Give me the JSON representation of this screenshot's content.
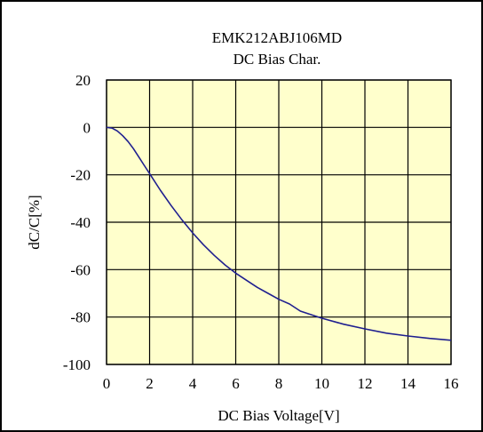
{
  "chart_data": {
    "type": "line",
    "title": "EMK212ABJ106MD",
    "subtitle": "DC Bias Char.",
    "xlabel": "DC Bias Voltage[V]",
    "ylabel": "dC/C[%]",
    "xlim": [
      0,
      16
    ],
    "ylim": [
      -100,
      20
    ],
    "x_ticks": [
      "0",
      "2",
      "4",
      "6",
      "8",
      "10",
      "12",
      "14",
      "16"
    ],
    "y_ticks": [
      "20",
      "0",
      "-20",
      "-40",
      "-60",
      "-80",
      "-100"
    ],
    "grid": true,
    "plot_background": "#ffffcc",
    "line_color": "#1f1f8f",
    "series": [
      {
        "x": [
          0,
          0.25,
          0.5,
          0.75,
          1.0,
          1.25,
          1.5,
          1.75,
          2.0,
          2.5,
          3.0,
          3.5,
          4.0,
          4.5,
          5.0,
          5.5,
          6.0,
          6.5,
          7.0,
          7.5,
          8.0,
          8.5,
          9.0,
          9.5,
          10.0,
          11.0,
          12.0,
          13.0,
          14.0,
          15.0,
          16.0
        ],
        "y": [
          0,
          -0.3,
          -1.5,
          -3.5,
          -6,
          -9,
          -12.5,
          -16,
          -19.5,
          -26.5,
          -33,
          -39,
          -44.5,
          -49.5,
          -54,
          -58,
          -61.5,
          -64.5,
          -67.5,
          -70,
          -72.5,
          -74.5,
          -77.5,
          -79,
          -80.5,
          -83,
          -85,
          -86.8,
          -88,
          -89,
          -89.8
        ]
      }
    ]
  }
}
